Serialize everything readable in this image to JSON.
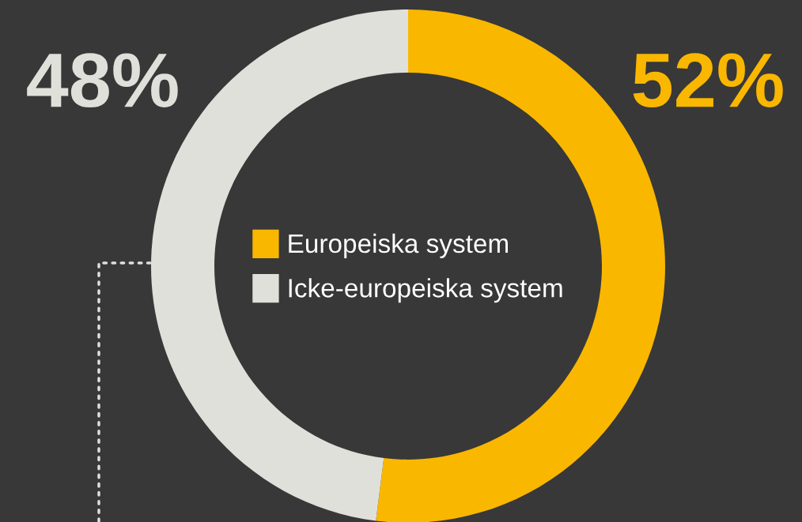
{
  "chart_data": {
    "type": "donut",
    "categories": [
      "Europeiska system",
      "Icke-europeiska system"
    ],
    "values": [
      52,
      48
    ],
    "colors": [
      "#fab700",
      "#e0e0db"
    ],
    "value_labels": [
      "52%",
      "48%"
    ],
    "legend": "center"
  }
}
